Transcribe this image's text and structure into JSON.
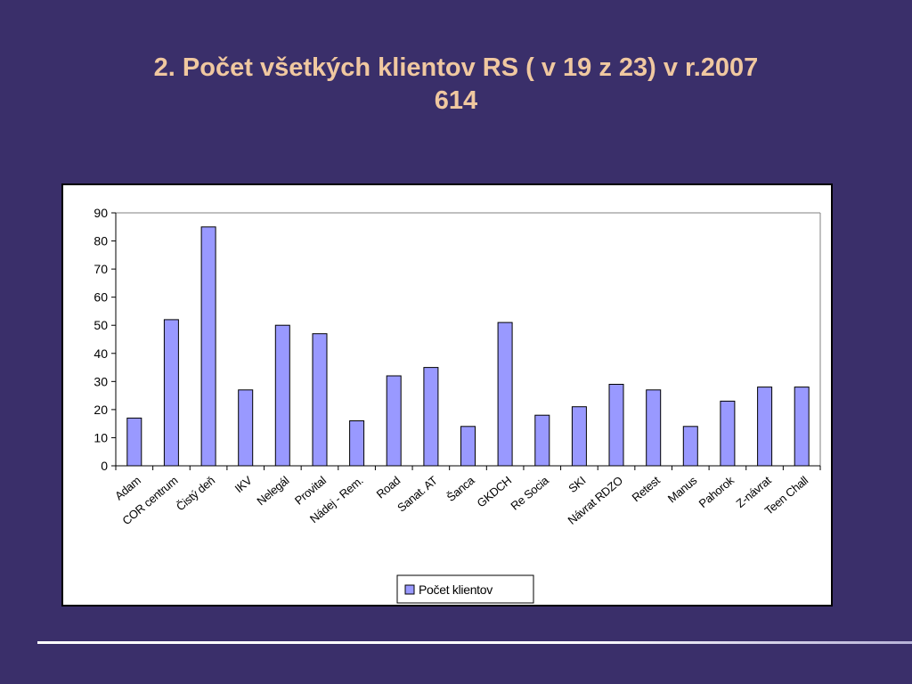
{
  "slide": {
    "title_line1": "2. Počet všetkých klientov RS ( v 19 z 23) v r.2007",
    "title_line2": "614"
  },
  "colors": {
    "background": "#3a2f6a",
    "title": "#f0c8a0",
    "bar_fill": "#9999ff",
    "bar_stroke": "#000000"
  },
  "chart_data": {
    "type": "bar",
    "categories": [
      "Adam",
      "COR centrum",
      "Čistý deň",
      "IKV",
      "Nelegál",
      "Provital",
      "Nádej - Rem.",
      "Road",
      "Sanat. AT",
      "Šanca",
      "GKDCH",
      "Re Socia",
      "SKI",
      "Návrat RDZO",
      "Retest",
      "Manus",
      "Pahorok",
      "Z-návrat",
      "Teen Chall"
    ],
    "series": [
      {
        "name": "Počet klientov",
        "values": [
          17,
          52,
          85,
          27,
          50,
          47,
          16,
          32,
          35,
          14,
          51,
          18,
          21,
          29,
          27,
          14,
          23,
          28,
          28
        ]
      }
    ],
    "ylim": [
      0,
      90
    ],
    "yticks": [
      0,
      10,
      20,
      30,
      40,
      50,
      60,
      70,
      80,
      90
    ],
    "ytick_labels": [
      "0",
      "10",
      "20",
      "30",
      "40",
      "50",
      "60",
      "70",
      "80",
      "90"
    ],
    "grid": false,
    "legend_position": "bottom"
  }
}
